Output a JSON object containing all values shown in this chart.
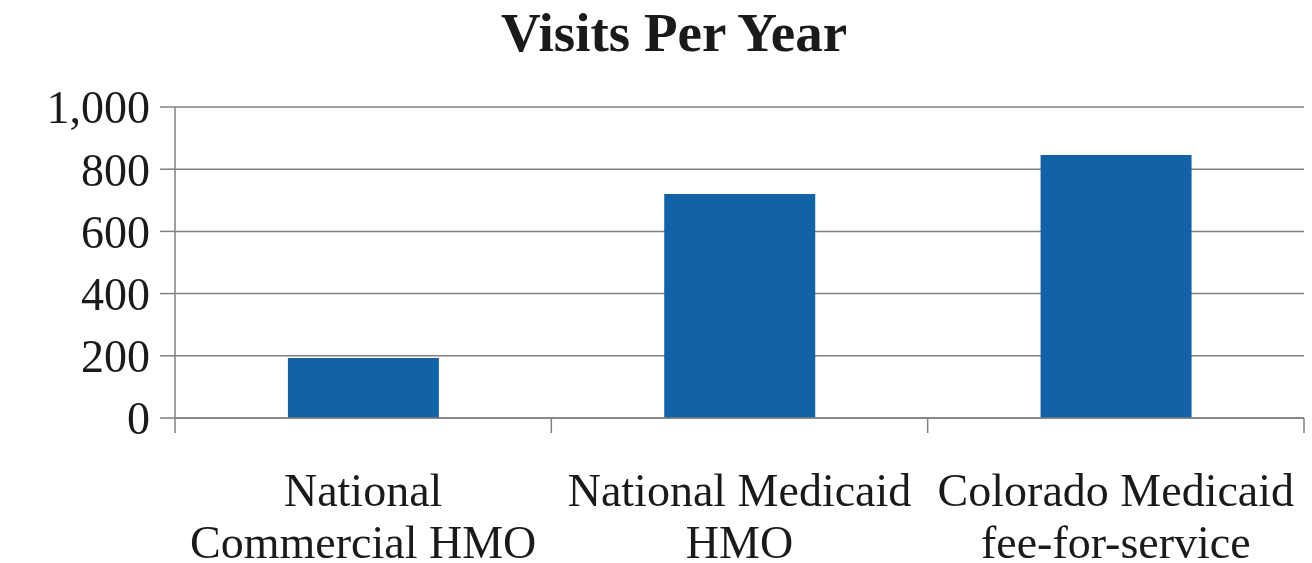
{
  "chart_data": {
    "type": "bar",
    "title": "Visits Per Year",
    "categories": [
      "National Commercial HMO",
      "National Medicaid HMO",
      "Colorado Medicaid fee-for-service"
    ],
    "values": [
      193,
      720,
      846
    ],
    "color": "#1162a6",
    "ylim": [
      0,
      1000
    ],
    "yticks": [
      0,
      200,
      400,
      600,
      800,
      {
        "value": 1000,
        "label": "1,000"
      }
    ],
    "grid": "y"
  }
}
